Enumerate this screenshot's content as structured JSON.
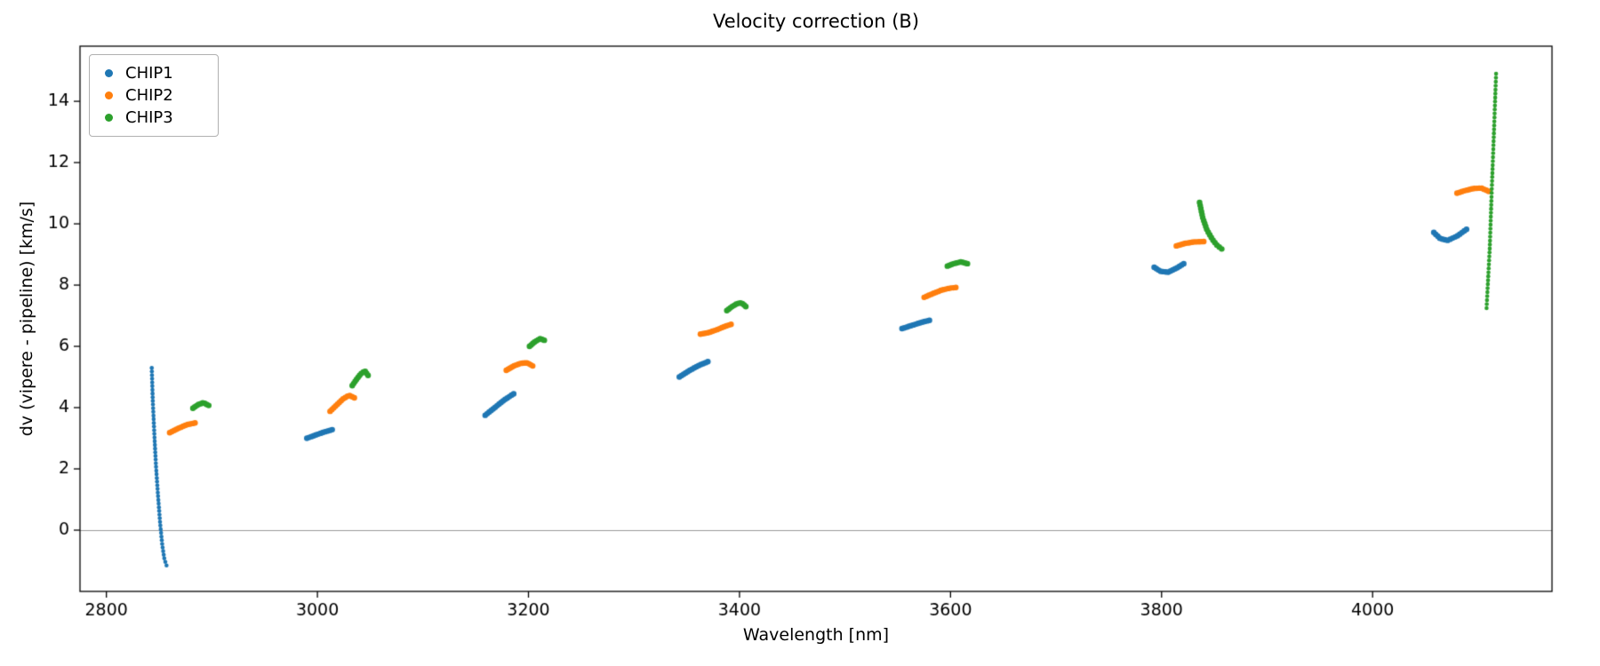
{
  "chart_data": {
    "type": "scatter",
    "title": "Velocity correction (B)",
    "xlabel": "Wavelength [nm]",
    "ylabel": "dv (vipere - pipeline) [km/s]",
    "xlim": [
      2775,
      4170
    ],
    "ylim": [
      -2.0,
      15.8
    ],
    "xticks": [
      2800,
      3000,
      3200,
      3400,
      3600,
      3800,
      4000
    ],
    "yticks": [
      0,
      2,
      4,
      6,
      8,
      10,
      12,
      14
    ],
    "grid": false,
    "hline_y": 0,
    "hline_color": "#9a9a9a",
    "legend_position": "upper left",
    "marker_default_r": 3.2,
    "series": [
      {
        "name": "CHIP1",
        "color": "#1f77b4",
        "segments": [
          {
            "n": 55,
            "r": 2.3,
            "pts": [
              [
                2843,
                5.3
              ],
              [
                2844,
                4.2
              ],
              [
                2845.5,
                3.1
              ],
              [
                2847,
                2.1
              ],
              [
                2849,
                1.1
              ],
              [
                2851,
                0.2
              ],
              [
                2853,
                -0.5
              ],
              [
                2855,
                -0.95
              ],
              [
                2857,
                -1.15
              ]
            ]
          },
          {
            "n": 12,
            "pts": [
              [
                2990,
                3.0
              ],
              [
                2998,
                3.1
              ],
              [
                3006,
                3.2
              ],
              [
                3014,
                3.28
              ]
            ]
          },
          {
            "n": 15,
            "pts": [
              [
                3159,
                3.75
              ],
              [
                3168,
                4.0
              ],
              [
                3177,
                4.25
              ],
              [
                3186,
                4.45
              ]
            ]
          },
          {
            "n": 14,
            "pts": [
              [
                3343,
                5.0
              ],
              [
                3352,
                5.2
              ],
              [
                3361,
                5.37
              ],
              [
                3370,
                5.5
              ]
            ]
          },
          {
            "n": 13,
            "pts": [
              [
                3554,
                6.58
              ],
              [
                3563,
                6.68
              ],
              [
                3572,
                6.78
              ],
              [
                3580,
                6.85
              ]
            ]
          },
          {
            "n": 14,
            "pts": [
              [
                3793,
                8.58
              ],
              [
                3799,
                8.45
              ],
              [
                3806,
                8.42
              ],
              [
                3814,
                8.55
              ],
              [
                3821,
                8.7
              ]
            ]
          },
          {
            "n": 15,
            "pts": [
              [
                4058,
                9.72
              ],
              [
                4064,
                9.52
              ],
              [
                4071,
                9.46
              ],
              [
                4080,
                9.6
              ],
              [
                4089,
                9.82
              ]
            ]
          }
        ]
      },
      {
        "name": "CHIP2",
        "color": "#ff7f0e",
        "segments": [
          {
            "n": 12,
            "pts": [
              [
                2860,
                3.18
              ],
              [
                2868,
                3.32
              ],
              [
                2876,
                3.44
              ],
              [
                2884,
                3.5
              ]
            ]
          },
          {
            "n": 13,
            "pts": [
              [
                3012,
                3.88
              ],
              [
                3018,
                4.08
              ],
              [
                3024,
                4.28
              ],
              [
                3030,
                4.4
              ],
              [
                3035,
                4.32
              ]
            ]
          },
          {
            "n": 14,
            "pts": [
              [
                3179,
                5.22
              ],
              [
                3186,
                5.36
              ],
              [
                3193,
                5.45
              ],
              [
                3199,
                5.46
              ],
              [
                3204,
                5.36
              ]
            ]
          },
          {
            "n": 14,
            "pts": [
              [
                3363,
                6.4
              ],
              [
                3371,
                6.45
              ],
              [
                3379,
                6.55
              ],
              [
                3386,
                6.65
              ],
              [
                3392,
                6.72
              ]
            ]
          },
          {
            "n": 14,
            "pts": [
              [
                3575,
                7.6
              ],
              [
                3583,
                7.72
              ],
              [
                3591,
                7.83
              ],
              [
                3599,
                7.9
              ],
              [
                3605,
                7.92
              ]
            ]
          },
          {
            "n": 13,
            "pts": [
              [
                3814,
                9.28
              ],
              [
                3822,
                9.36
              ],
              [
                3831,
                9.41
              ],
              [
                3840,
                9.42
              ]
            ]
          },
          {
            "n": 14,
            "pts": [
              [
                4080,
                11.0
              ],
              [
                4087,
                11.08
              ],
              [
                4095,
                11.15
              ],
              [
                4103,
                11.17
              ],
              [
                4110,
                11.06
              ]
            ]
          }
        ]
      },
      {
        "name": "CHIP3",
        "color": "#2ca02c",
        "segments": [
          {
            "n": 9,
            "pts": [
              [
                2882,
                3.98
              ],
              [
                2887,
                4.1
              ],
              [
                2892,
                4.16
              ],
              [
                2897,
                4.07
              ]
            ]
          },
          {
            "n": 11,
            "pts": [
              [
                3033,
                4.72
              ],
              [
                3037,
                4.92
              ],
              [
                3041,
                5.1
              ],
              [
                3045,
                5.2
              ],
              [
                3048,
                5.05
              ]
            ]
          },
          {
            "n": 9,
            "pts": [
              [
                3201,
                6.0
              ],
              [
                3206,
                6.15
              ],
              [
                3211,
                6.25
              ],
              [
                3215,
                6.2
              ]
            ]
          },
          {
            "n": 11,
            "pts": [
              [
                3388,
                7.17
              ],
              [
                3393,
                7.3
              ],
              [
                3398,
                7.4
              ],
              [
                3402,
                7.42
              ],
              [
                3406,
                7.3
              ]
            ]
          },
          {
            "n": 10,
            "pts": [
              [
                3597,
                8.62
              ],
              [
                3603,
                8.7
              ],
              [
                3610,
                8.76
              ],
              [
                3616,
                8.7
              ]
            ]
          },
          {
            "n": 18,
            "pts": [
              [
                3836,
                10.7
              ],
              [
                3839,
                10.2
              ],
              [
                3843,
                9.8
              ],
              [
                3848,
                9.5
              ],
              [
                3852,
                9.32
              ],
              [
                3857,
                9.18
              ]
            ]
          },
          {
            "n": 60,
            "r": 2.3,
            "pts": [
              [
                4108,
                7.25
              ],
              [
                4111,
                9.2
              ],
              [
                4113,
                11.2
              ],
              [
                4115,
                13.0
              ],
              [
                4117,
                14.9
              ]
            ]
          }
        ]
      }
    ]
  }
}
